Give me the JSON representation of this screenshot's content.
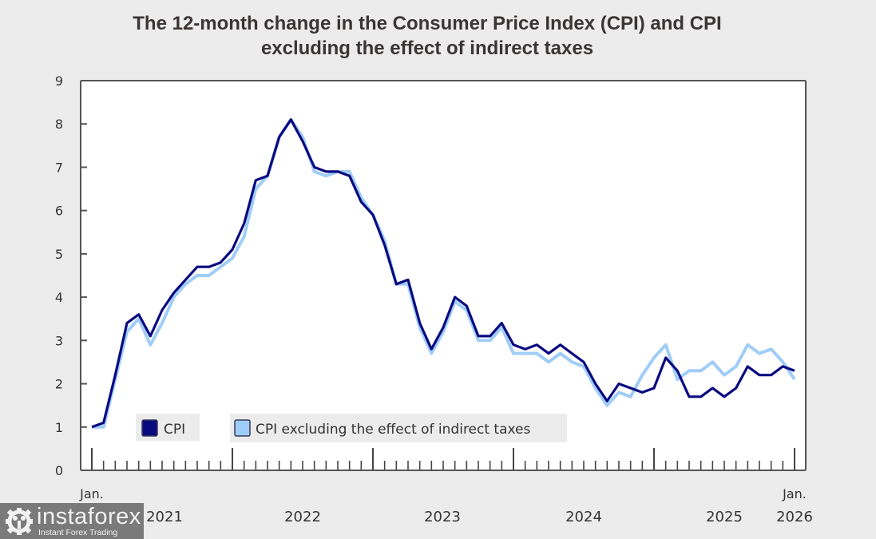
{
  "chart_data": {
    "type": "line",
    "title_line1": "The 12-month change in the Consumer Price Index (CPI) and CPI",
    "title_line2": "excluding the effect of indirect taxes",
    "xlabel": "",
    "ylabel": "",
    "ylim": [
      0,
      9
    ],
    "yticks": [
      "0",
      "1",
      "2",
      "3",
      "4",
      "5",
      "6",
      "7",
      "8",
      "9"
    ],
    "x_start": "2021-01",
    "x_end": "2026-01",
    "xtick_labels": [
      {
        "top": "Jan.",
        "bottom": "2021"
      },
      {
        "top": "",
        "bottom": "2022"
      },
      {
        "top": "",
        "bottom": "2023"
      },
      {
        "top": "",
        "bottom": "2024"
      },
      {
        "top": "",
        "bottom": "2025"
      },
      {
        "top": "Jan.",
        "bottom": "2026"
      }
    ],
    "grid": false,
    "legend_position": "bottom-left, inside plot",
    "series": [
      {
        "name": "CPI",
        "color": "#0a0a80",
        "values": [
          1.0,
          1.1,
          2.2,
          3.4,
          3.6,
          3.1,
          3.7,
          4.1,
          4.4,
          4.7,
          4.7,
          4.8,
          5.1,
          5.7,
          6.7,
          6.8,
          7.7,
          8.1,
          7.6,
          7.0,
          6.9,
          6.9,
          6.8,
          6.2,
          5.9,
          5.2,
          4.3,
          4.4,
          3.4,
          2.8,
          3.3,
          4.0,
          3.8,
          3.1,
          3.1,
          3.4,
          2.9,
          2.8,
          2.9,
          2.7,
          2.9,
          2.7,
          2.5,
          2.0,
          1.6,
          2.0,
          1.9,
          1.8,
          1.9,
          2.6,
          2.3,
          1.7,
          1.7,
          1.9,
          1.7,
          1.9,
          2.4,
          2.2,
          2.2,
          2.4,
          2.3
        ]
      },
      {
        "name": "CPI excluding the effect of indirect taxes",
        "color": "#9fcdf7",
        "values": [
          1.0,
          1.0,
          2.1,
          3.2,
          3.5,
          2.9,
          3.4,
          4.0,
          4.3,
          4.5,
          4.5,
          4.7,
          4.9,
          5.4,
          6.5,
          6.8,
          7.7,
          8.1,
          7.7,
          6.9,
          6.8,
          6.9,
          6.9,
          6.3,
          5.9,
          5.3,
          4.3,
          4.3,
          3.3,
          2.7,
          3.2,
          3.9,
          3.7,
          3.0,
          3.0,
          3.3,
          2.7,
          2.7,
          2.7,
          2.5,
          2.7,
          2.5,
          2.4,
          1.9,
          1.5,
          1.8,
          1.7,
          2.2,
          2.6,
          2.9,
          2.1,
          2.3,
          2.3,
          2.5,
          2.2,
          2.4,
          2.9,
          2.7,
          2.8,
          2.5,
          2.1
        ]
      }
    ]
  },
  "legend": {
    "items": [
      {
        "label": "CPI",
        "color": "#0a0a80"
      },
      {
        "label": "CPI excluding the effect of indirect taxes",
        "color": "#9fcdf7"
      }
    ]
  },
  "watermark": {
    "brand": "instaforex",
    "tagline": "Instant Forex Trading"
  }
}
